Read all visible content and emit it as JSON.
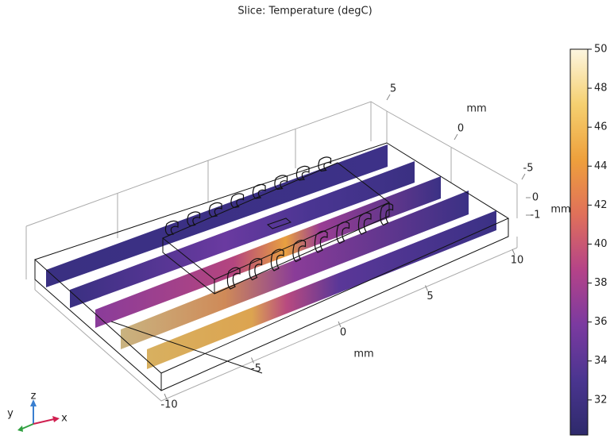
{
  "chart_data": {
    "type": "slice",
    "title": "Slice: Temperature (degC)",
    "colormap": [
      "#2e2a6b",
      "#4a3590",
      "#7b3aa0",
      "#b54388",
      "#e0705a",
      "#eea03c",
      "#f5d070",
      "#fdf6e0"
    ],
    "colorbar": {
      "lim": [
        30.2,
        50
      ],
      "ticks": [
        32,
        34,
        36,
        38,
        40,
        42,
        44,
        46,
        48,
        50
      ]
    },
    "x_axis": {
      "label": "mm",
      "ticks": [
        -10,
        -5,
        0,
        5,
        10
      ]
    },
    "y_axis": {
      "label": "mm",
      "ticks": [
        -5,
        0,
        5
      ]
    },
    "z_axis": {
      "label": "mm",
      "ticks": [
        -1,
        0
      ]
    },
    "triad": {
      "x": "x",
      "y": "y",
      "z": "z"
    }
  }
}
